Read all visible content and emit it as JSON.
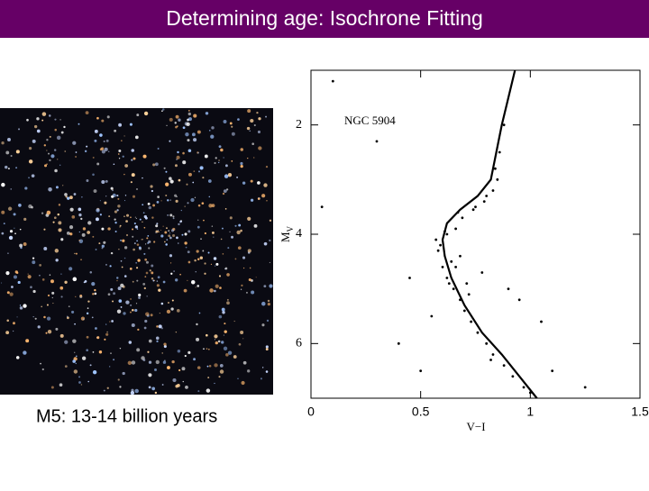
{
  "title": "Determining age: Isochrone Fitting",
  "caption": "M5: 13-14 billion years",
  "chart_data": {
    "type": "scatter",
    "annotation": "NGC 5904",
    "x_label": "V−I",
    "y_label": {
      "main": "M",
      "sub": "V"
    },
    "xlim": [
      0,
      1.5
    ],
    "ylim": [
      7,
      1
    ],
    "xticks": [
      0,
      0.5,
      1,
      1.5
    ],
    "yticks": [
      2,
      4,
      6
    ],
    "series": [
      {
        "name": "stars",
        "color": "#000000",
        "x": [
          0.62,
          0.58,
          0.66,
          0.6,
          0.63,
          0.59,
          0.65,
          0.68,
          0.7,
          0.73,
          0.76,
          0.8,
          0.83,
          0.88,
          0.92,
          0.97,
          1.0,
          0.64,
          0.61,
          0.57,
          0.69,
          0.74,
          0.79,
          0.85,
          0.86,
          0.84,
          0.83,
          0.88,
          0.8,
          0.72,
          0.55,
          0.45,
          0.3,
          0.1,
          0.05,
          0.95,
          1.1,
          1.25,
          0.4,
          0.5,
          0.68,
          0.78,
          0.9,
          1.05,
          0.71,
          0.66,
          0.62,
          0.67,
          0.75,
          0.82
        ],
        "values": [
          4.0,
          4.3,
          3.9,
          4.6,
          4.9,
          4.2,
          5.0,
          5.2,
          5.4,
          5.6,
          5.8,
          6.0,
          6.2,
          6.4,
          6.6,
          6.8,
          6.9,
          4.5,
          3.95,
          4.1,
          3.7,
          3.55,
          3.4,
          3.0,
          2.5,
          2.8,
          3.2,
          2.0,
          3.3,
          5.1,
          5.5,
          4.8,
          2.3,
          1.2,
          3.5,
          5.2,
          6.5,
          6.8,
          6.0,
          6.5,
          4.4,
          4.7,
          5.0,
          5.6,
          4.9,
          4.6,
          4.8,
          3.6,
          3.5,
          6.3
        ]
      },
      {
        "name": "isochrone",
        "color": "#000000",
        "line": true,
        "x": [
          0.93,
          0.9,
          0.87,
          0.845,
          0.82,
          0.76,
          0.68,
          0.62,
          0.6,
          0.61,
          0.64,
          0.7,
          0.78,
          0.87,
          0.95,
          1.03
        ],
        "values": [
          1.0,
          1.5,
          2.0,
          2.5,
          3.0,
          3.3,
          3.55,
          3.8,
          4.1,
          4.4,
          4.8,
          5.3,
          5.8,
          6.2,
          6.6,
          7.0
        ]
      }
    ]
  }
}
